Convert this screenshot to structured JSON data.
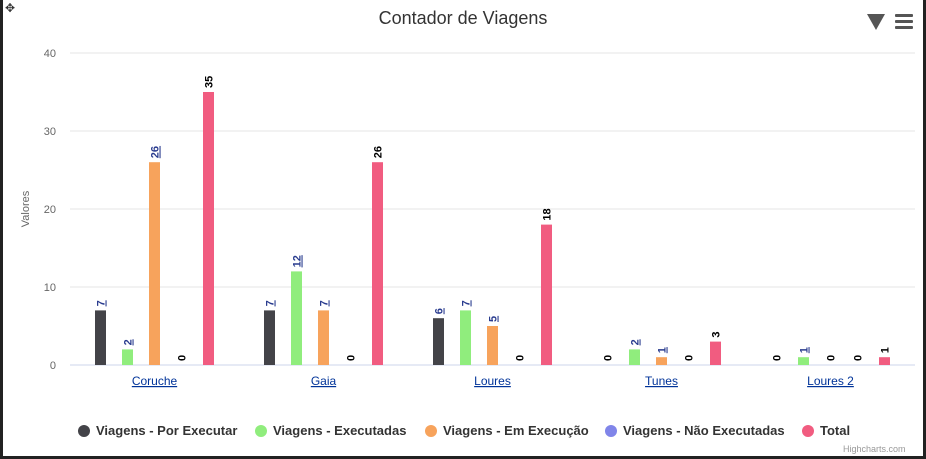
{
  "chart_data": {
    "type": "bar",
    "title": "Contador de Viagens",
    "ylabel": "Valores",
    "xlabel": "",
    "ylim": [
      0,
      40
    ],
    "yticks": [
      0,
      10,
      20,
      30,
      40
    ],
    "categories": [
      "Coruche",
      "Gaia",
      "Loures",
      "Tunes",
      "Loures 2"
    ],
    "series": [
      {
        "name": "Viagens - Por Executar",
        "color": "#434348",
        "values": [
          7,
          7,
          6,
          0,
          0
        ],
        "labels_link": [
          true,
          true,
          true,
          false,
          false
        ]
      },
      {
        "name": "Viagens - Executadas",
        "color": "#90ed7d",
        "values": [
          2,
          12,
          7,
          2,
          1
        ],
        "labels_link": [
          true,
          true,
          true,
          true,
          true
        ]
      },
      {
        "name": "Viagens - Em Execução",
        "color": "#f7a35c",
        "values": [
          26,
          7,
          5,
          1,
          0
        ],
        "labels_link": [
          true,
          true,
          true,
          true,
          false
        ]
      },
      {
        "name": "Viagens - Não Executadas",
        "color": "#8085e9",
        "values": [
          0,
          0,
          0,
          0,
          0
        ],
        "labels_link": [
          false,
          false,
          false,
          false,
          false
        ]
      },
      {
        "name": "Total",
        "color": "#f15c80",
        "values": [
          35,
          26,
          18,
          3,
          1
        ],
        "labels_link": [
          false,
          false,
          false,
          false,
          false
        ]
      }
    ],
    "grid": true,
    "legend_position": "bottom"
  },
  "icons": {
    "move": "move-icon",
    "filter": "filter-icon",
    "menu": "hamburger-menu-icon"
  },
  "credits": "Highcharts.com"
}
